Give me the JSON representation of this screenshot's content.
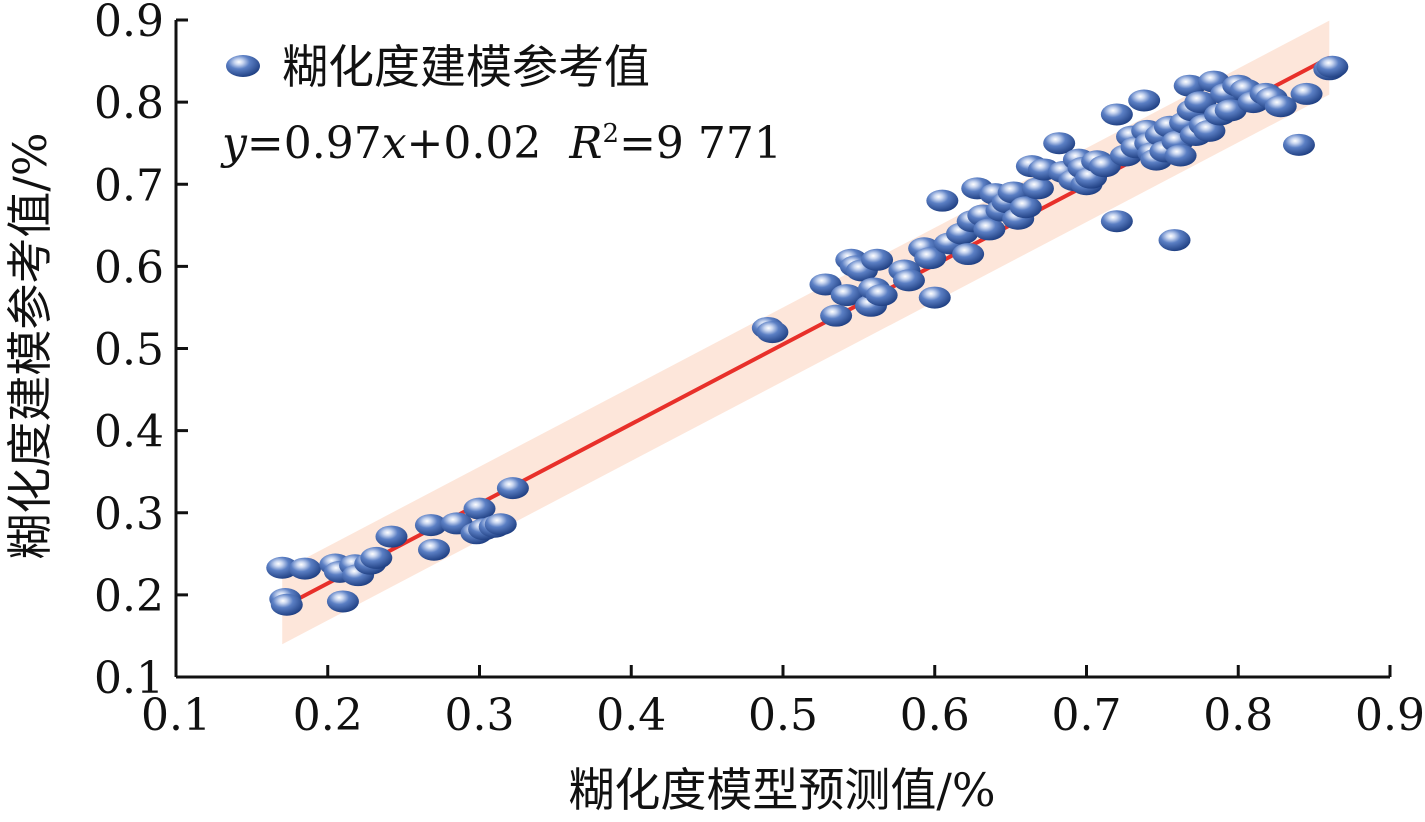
{
  "chart_data": {
    "type": "scatter",
    "xlabel": "糊化度模型预测值/%",
    "ylabel": "糊化度建模参考值/%",
    "xlim": [
      0.1,
      0.9
    ],
    "ylim": [
      0.1,
      0.9
    ],
    "xticks": [
      "0.1",
      "0.2",
      "0.3",
      "0.4",
      "0.5",
      "0.6",
      "0.7",
      "0.8",
      "0.9"
    ],
    "yticks": [
      "0.1",
      "0.2",
      "0.3",
      "0.4",
      "0.5",
      "0.6",
      "0.7",
      "0.8",
      "0.9"
    ],
    "grid": false,
    "legend": {
      "position": "top-left",
      "label": "糊化度建模参考值"
    },
    "annotation": {
      "y_var": "y",
      "equals1": "=0.97",
      "x_var": "x",
      "plus": "+0.02",
      "r_var": "R",
      "r_sup": "2",
      "equals2": "=9 771"
    },
    "fit": {
      "slope": 0.97,
      "intercept": 0.02,
      "x_range": [
        0.17,
        0.86
      ],
      "band_halfwidth": 0.045
    },
    "colors": {
      "points": "#3f66b0",
      "fit_line": "#e8302a",
      "band": "#fde3d6",
      "axis": "#111111"
    },
    "series": [
      {
        "name": "糊化度建模参考值",
        "points": [
          [
            0.17,
            0.233
          ],
          [
            0.172,
            0.195
          ],
          [
            0.173,
            0.188
          ],
          [
            0.185,
            0.232
          ],
          [
            0.205,
            0.237
          ],
          [
            0.208,
            0.228
          ],
          [
            0.21,
            0.192
          ],
          [
            0.218,
            0.236
          ],
          [
            0.22,
            0.224
          ],
          [
            0.228,
            0.238
          ],
          [
            0.232,
            0.245
          ],
          [
            0.242,
            0.271
          ],
          [
            0.268,
            0.285
          ],
          [
            0.27,
            0.255
          ],
          [
            0.285,
            0.287
          ],
          [
            0.3,
            0.305
          ],
          [
            0.298,
            0.275
          ],
          [
            0.303,
            0.28
          ],
          [
            0.31,
            0.283
          ],
          [
            0.314,
            0.286
          ],
          [
            0.322,
            0.33
          ],
          [
            0.49,
            0.525
          ],
          [
            0.493,
            0.52
          ],
          [
            0.528,
            0.578
          ],
          [
            0.535,
            0.54
          ],
          [
            0.542,
            0.565
          ],
          [
            0.545,
            0.608
          ],
          [
            0.548,
            0.6
          ],
          [
            0.552,
            0.595
          ],
          [
            0.558,
            0.552
          ],
          [
            0.56,
            0.573
          ],
          [
            0.562,
            0.608
          ],
          [
            0.565,
            0.565
          ],
          [
            0.58,
            0.595
          ],
          [
            0.583,
            0.583
          ],
          [
            0.593,
            0.622
          ],
          [
            0.597,
            0.61
          ],
          [
            0.6,
            0.562
          ],
          [
            0.61,
            0.628
          ],
          [
            0.605,
            0.68
          ],
          [
            0.618,
            0.64
          ],
          [
            0.622,
            0.615
          ],
          [
            0.625,
            0.655
          ],
          [
            0.628,
            0.695
          ],
          [
            0.632,
            0.662
          ],
          [
            0.636,
            0.645
          ],
          [
            0.64,
            0.688
          ],
          [
            0.644,
            0.668
          ],
          [
            0.648,
            0.678
          ],
          [
            0.652,
            0.69
          ],
          [
            0.655,
            0.658
          ],
          [
            0.66,
            0.672
          ],
          [
            0.664,
            0.722
          ],
          [
            0.668,
            0.695
          ],
          [
            0.672,
            0.718
          ],
          [
            0.682,
            0.75
          ],
          [
            0.685,
            0.715
          ],
          [
            0.692,
            0.705
          ],
          [
            0.695,
            0.73
          ],
          [
            0.698,
            0.72
          ],
          [
            0.7,
            0.7
          ],
          [
            0.703,
            0.708
          ],
          [
            0.707,
            0.728
          ],
          [
            0.712,
            0.722
          ],
          [
            0.72,
            0.655
          ],
          [
            0.72,
            0.785
          ],
          [
            0.726,
            0.735
          ],
          [
            0.73,
            0.758
          ],
          [
            0.733,
            0.745
          ],
          [
            0.738,
            0.802
          ],
          [
            0.74,
            0.765
          ],
          [
            0.742,
            0.75
          ],
          [
            0.744,
            0.738
          ],
          [
            0.746,
            0.73
          ],
          [
            0.749,
            0.76
          ],
          [
            0.752,
            0.74
          ],
          [
            0.755,
            0.77
          ],
          [
            0.758,
            0.632
          ],
          [
            0.76,
            0.752
          ],
          [
            0.762,
            0.735
          ],
          [
            0.765,
            0.775
          ],
          [
            0.768,
            0.82
          ],
          [
            0.77,
            0.79
          ],
          [
            0.772,
            0.76
          ],
          [
            0.775,
            0.8
          ],
          [
            0.778,
            0.772
          ],
          [
            0.781,
            0.765
          ],
          [
            0.784,
            0.825
          ],
          [
            0.788,
            0.785
          ],
          [
            0.792,
            0.81
          ],
          [
            0.795,
            0.79
          ],
          [
            0.8,
            0.82
          ],
          [
            0.805,
            0.815
          ],
          [
            0.81,
            0.8
          ],
          [
            0.818,
            0.81
          ],
          [
            0.822,
            0.805
          ],
          [
            0.828,
            0.795
          ],
          [
            0.84,
            0.748
          ],
          [
            0.845,
            0.81
          ],
          [
            0.86,
            0.84
          ],
          [
            0.862,
            0.843
          ]
        ]
      }
    ]
  }
}
